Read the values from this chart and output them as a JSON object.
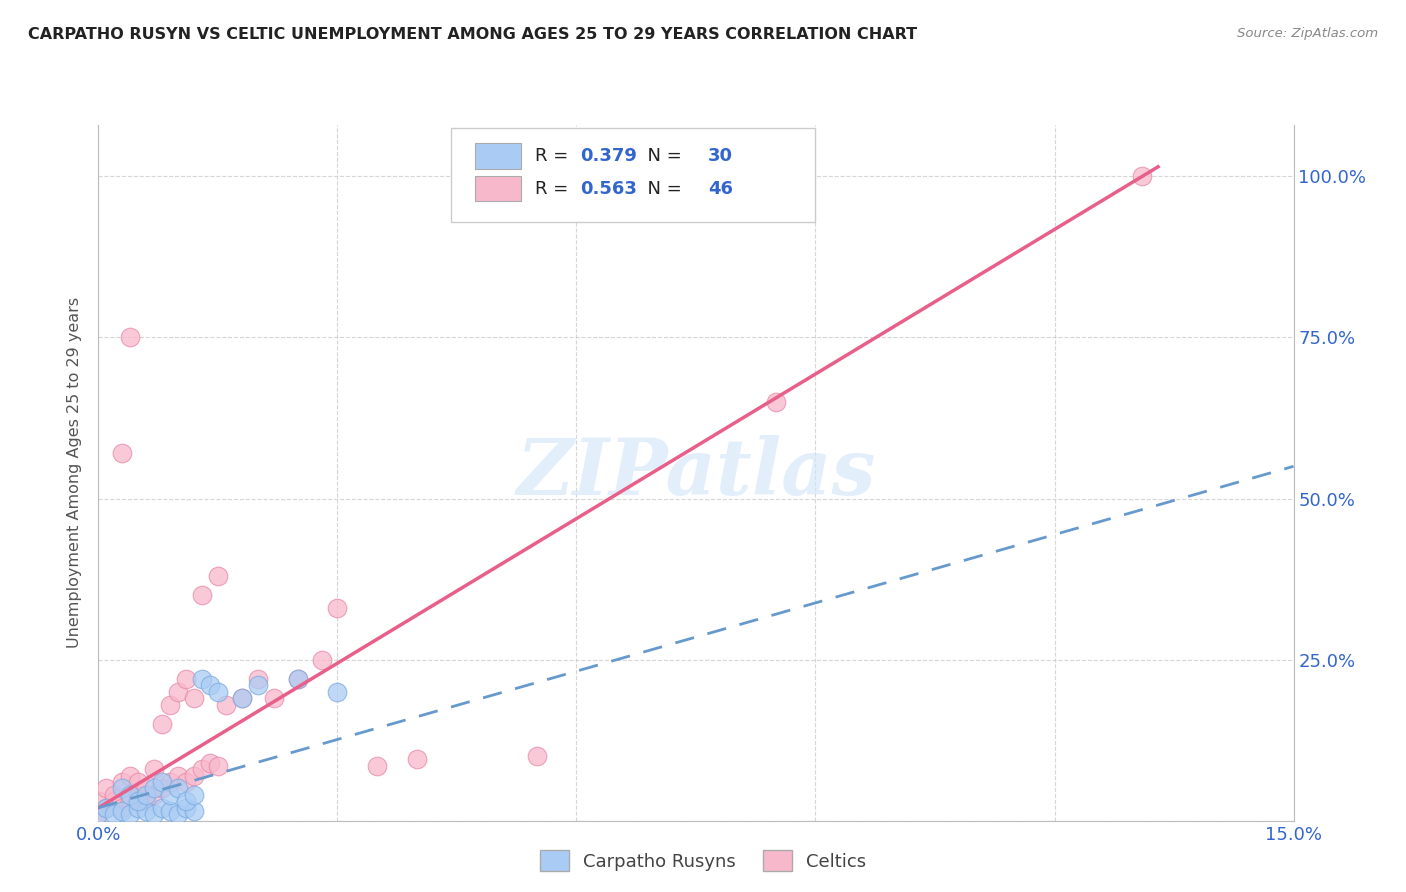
{
  "title": "CARPATHO RUSYN VS CELTIC UNEMPLOYMENT AMONG AGES 25 TO 29 YEARS CORRELATION CHART",
  "source": "Source: ZipAtlas.com",
  "ylabel": "Unemployment Among Ages 25 to 29 years",
  "xlim": [
    0.0,
    0.15
  ],
  "ylim": [
    0.0,
    1.08
  ],
  "carpatho_color": "#aaccf4",
  "carpatho_edge": "#7aaade",
  "celtic_color": "#f8b8cc",
  "celtic_edge": "#e888a8",
  "carpatho_line_color": "#6699cc",
  "celtic_line_color": "#e8608a",
  "carpatho_R": 0.379,
  "carpatho_N": 30,
  "celtic_R": 0.563,
  "celtic_N": 46,
  "legend_label_carpatho": "Carpatho Rusyns",
  "legend_label_celtic": "Celtics",
  "watermark": "ZIPatlas",
  "title_color": "#222222",
  "axis_label_color": "#3366cc",
  "ylabel_color": "#555555",
  "carpatho_x": [
    0.0,
    0.001,
    0.002,
    0.003,
    0.004,
    0.005,
    0.006,
    0.007,
    0.008,
    0.009,
    0.01,
    0.011,
    0.012,
    0.003,
    0.004,
    0.005,
    0.006,
    0.007,
    0.008,
    0.009,
    0.01,
    0.011,
    0.012,
    0.013,
    0.014,
    0.015,
    0.018,
    0.02,
    0.025,
    0.03
  ],
  "carpatho_y": [
    0.01,
    0.02,
    0.01,
    0.015,
    0.01,
    0.02,
    0.015,
    0.01,
    0.02,
    0.015,
    0.01,
    0.02,
    0.015,
    0.05,
    0.04,
    0.03,
    0.04,
    0.05,
    0.06,
    0.04,
    0.05,
    0.03,
    0.04,
    0.22,
    0.21,
    0.2,
    0.19,
    0.21,
    0.22,
    0.2
  ],
  "celtic_x": [
    0.0,
    0.0,
    0.001,
    0.001,
    0.002,
    0.002,
    0.003,
    0.003,
    0.004,
    0.004,
    0.005,
    0.005,
    0.006,
    0.006,
    0.007,
    0.007,
    0.008,
    0.008,
    0.009,
    0.009,
    0.01,
    0.01,
    0.011,
    0.011,
    0.012,
    0.012,
    0.013,
    0.013,
    0.014,
    0.015,
    0.015,
    0.016,
    0.018,
    0.02,
    0.022,
    0.025,
    0.028,
    0.03,
    0.035,
    0.04,
    0.055,
    0.06,
    0.085,
    0.131,
    0.003,
    0.004
  ],
  "celtic_y": [
    0.01,
    0.03,
    0.02,
    0.05,
    0.03,
    0.04,
    0.02,
    0.06,
    0.03,
    0.07,
    0.04,
    0.06,
    0.03,
    0.05,
    0.04,
    0.08,
    0.05,
    0.15,
    0.06,
    0.18,
    0.07,
    0.2,
    0.06,
    0.22,
    0.07,
    0.19,
    0.08,
    0.35,
    0.09,
    0.085,
    0.38,
    0.18,
    0.19,
    0.22,
    0.19,
    0.22,
    0.25,
    0.33,
    0.085,
    0.095,
    0.1,
    0.99,
    0.65,
    1.0,
    0.57,
    0.75
  ]
}
